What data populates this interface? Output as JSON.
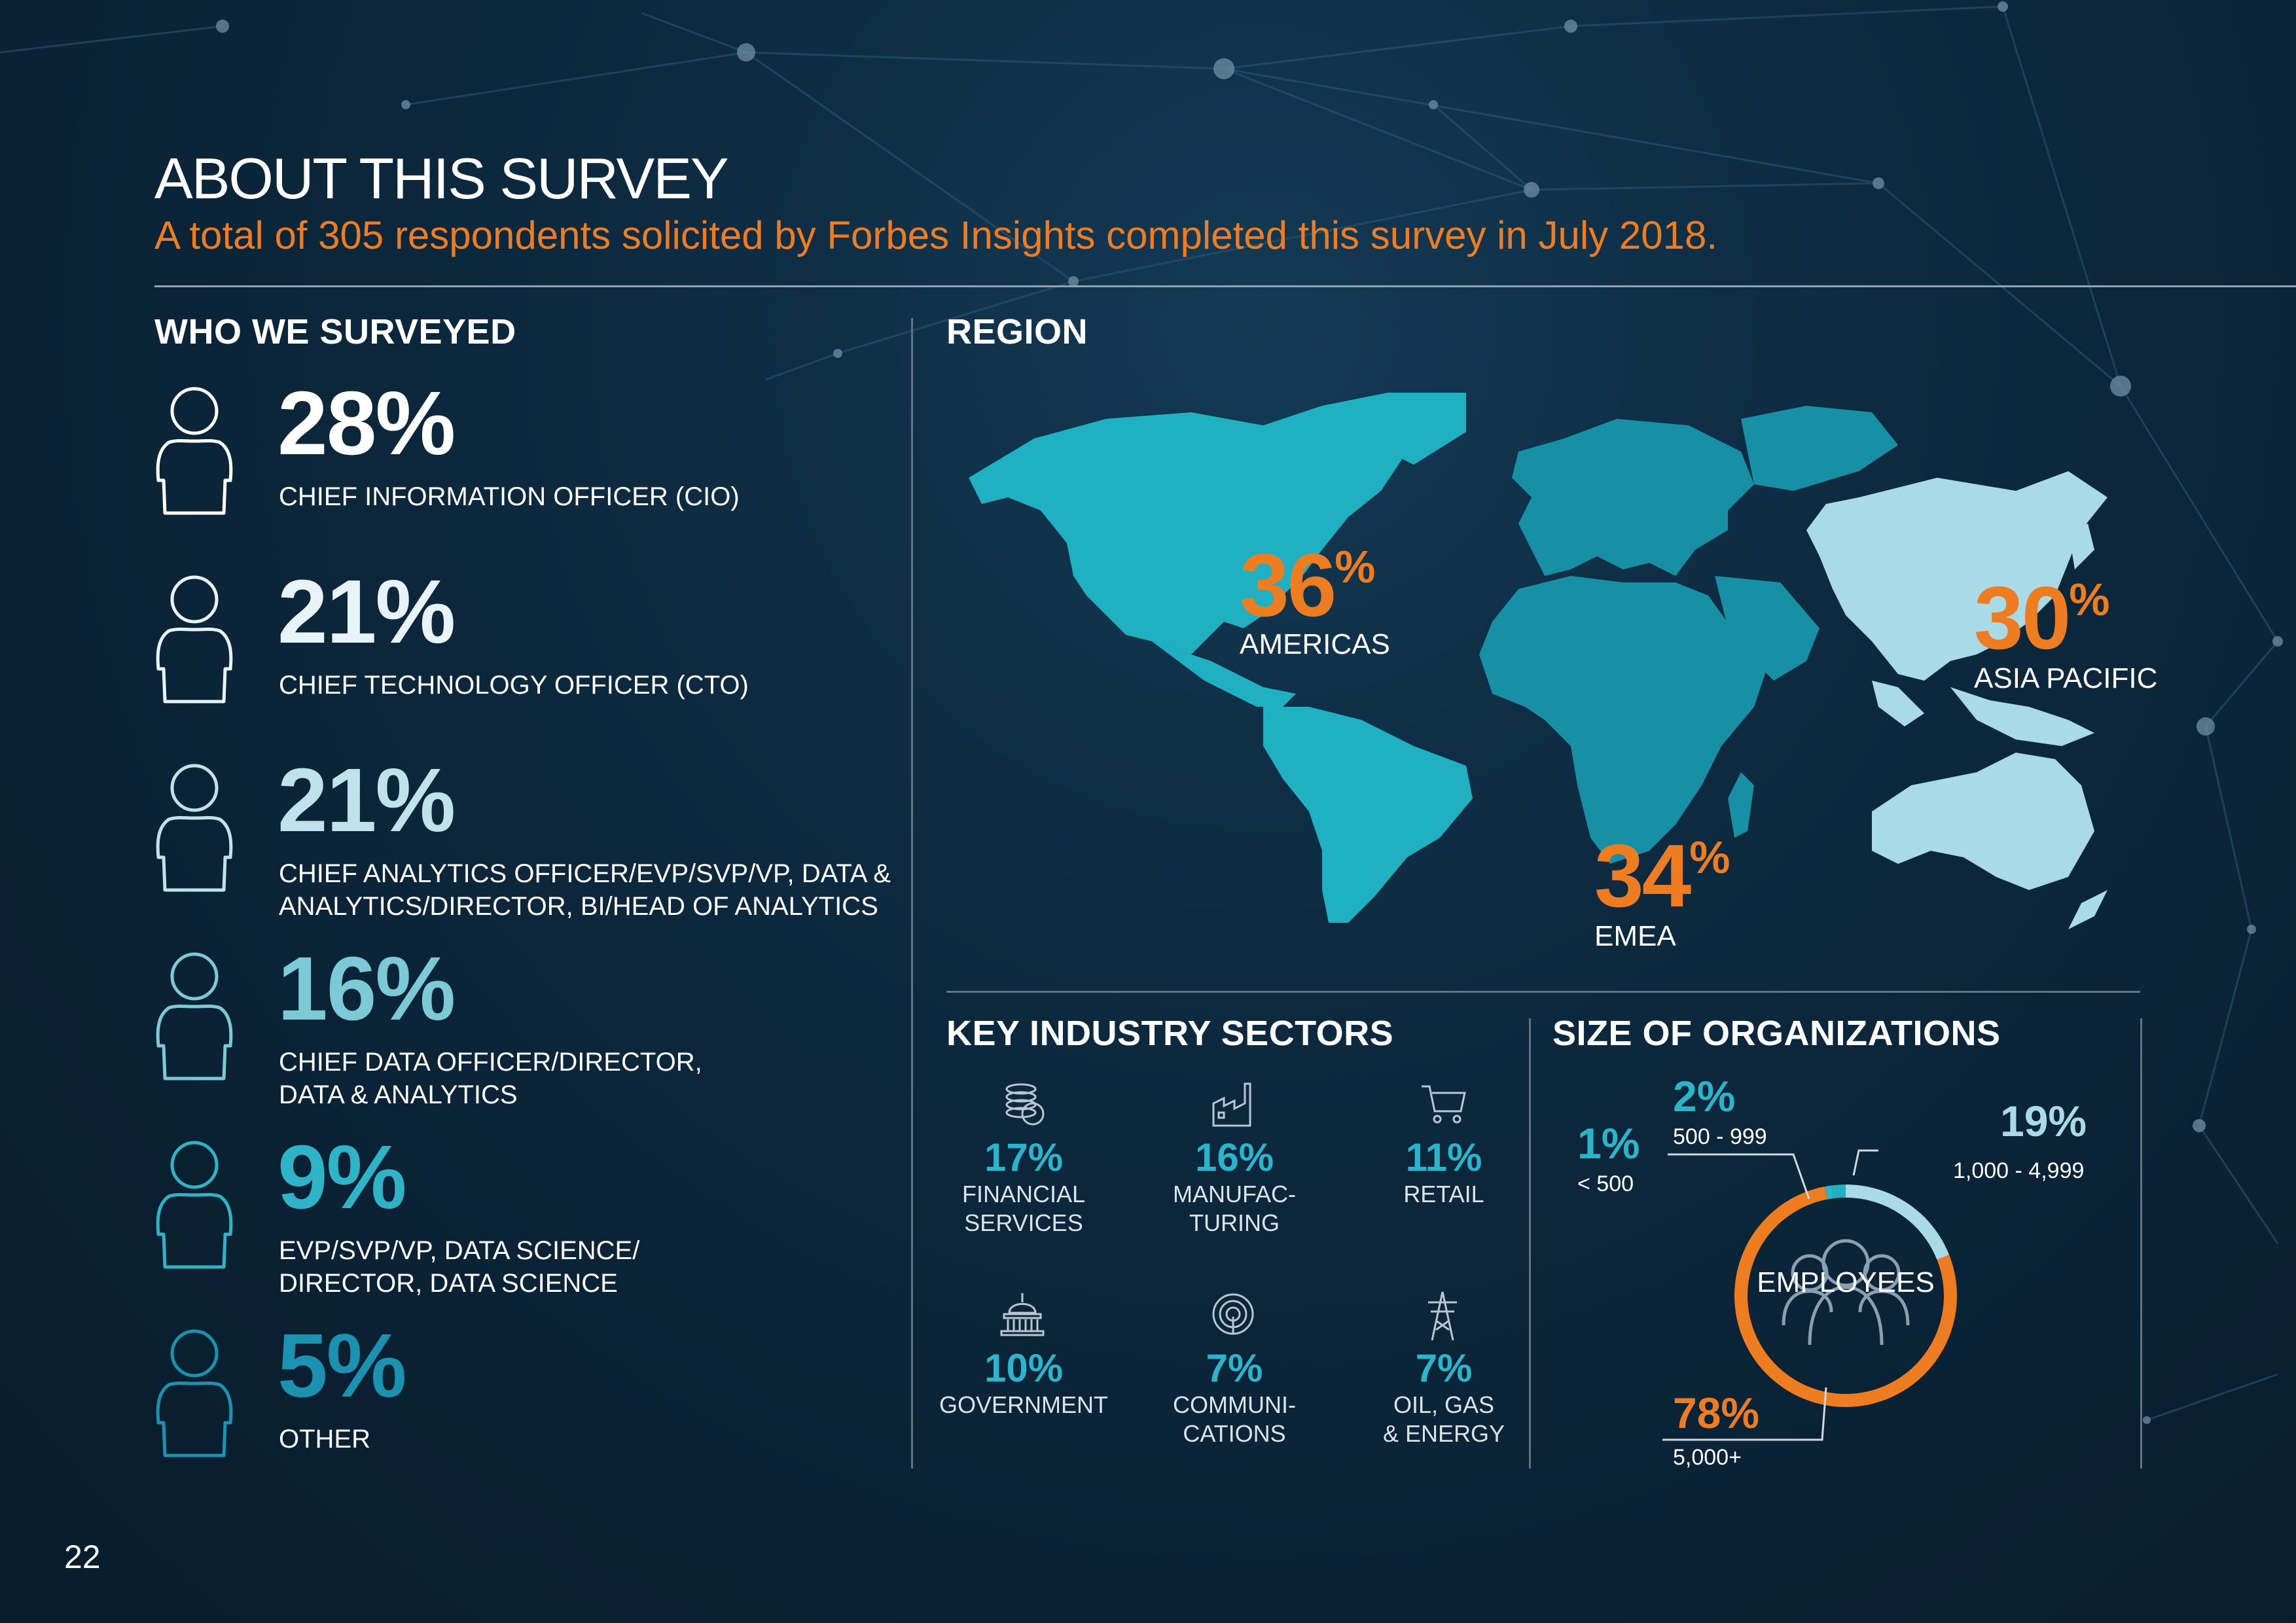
{
  "page": {
    "title": "ABOUT THIS SURVEY",
    "subtitle": "A total of 305 respondents solicited by Forbes Insights completed this survey in July 2018.",
    "page_number": "22"
  },
  "colors": {
    "background": "#0b2436",
    "accent_orange": "#ee7d22",
    "teal": "#2bb5cc",
    "americas": "#1fb0c2",
    "emea": "#1790a6",
    "asia_pacific": "#a9dbe6"
  },
  "who_we_surveyed": {
    "heading": "WHO WE SURVEYED",
    "icon": "person-outline-icon",
    "roles": [
      {
        "pct": "28%",
        "lines": [
          "CHIEF INFORMATION OFFICER (CIO)"
        ],
        "color": "#ffffff"
      },
      {
        "pct": "21%",
        "lines": [
          "CHIEF TECHNOLOGY OFFICER (CTO)"
        ],
        "color": "#e8f3f7"
      },
      {
        "pct": "21%",
        "lines": [
          "CHIEF ANALYTICS OFFICER/EVP/SVP/VP, DATA &",
          "ANALYTICS/DIRECTOR, BI/HEAD OF ANALYTICS"
        ],
        "color": "#bfe3ea"
      },
      {
        "pct": "16%",
        "lines": [
          "CHIEF DATA OFFICER/DIRECTOR,",
          "DATA & ANALYTICS"
        ],
        "color": "#7ccad8"
      },
      {
        "pct": "9%",
        "lines": [
          "EVP/SVP/VP, DATA SCIENCE/",
          "DIRECTOR, DATA SCIENCE"
        ],
        "color": "#2fb3c6"
      },
      {
        "pct": "5%",
        "lines": [
          "OTHER"
        ],
        "color": "#1b93b0"
      }
    ]
  },
  "region": {
    "heading": "REGION",
    "americas": {
      "pct": "36",
      "sign": "%",
      "label": "AMERICAS",
      "value": 36
    },
    "emea": {
      "pct": "34",
      "sign": "%",
      "label": "EMEA",
      "value": 34
    },
    "asia_pacific": {
      "pct": "30",
      "sign": "%",
      "label": "ASIA PACIFIC",
      "value": 30
    }
  },
  "industry": {
    "heading": "KEY INDUSTRY SECTORS",
    "items": [
      {
        "pct": "17%",
        "lines": [
          "FINANCIAL",
          "SERVICES"
        ],
        "icon": "coins-icon"
      },
      {
        "pct": "16%",
        "lines": [
          "MANUFAC-",
          "TURING"
        ],
        "icon": "factory-icon"
      },
      {
        "pct": "11%",
        "lines": [
          "RETAIL"
        ],
        "icon": "shopping-cart-icon"
      },
      {
        "pct": "10%",
        "lines": [
          "GOVERNMENT"
        ],
        "icon": "capitol-building-icon"
      },
      {
        "pct": "7%",
        "lines": [
          "COMMUNI-",
          "CATIONS"
        ],
        "icon": "broadcast-icon"
      },
      {
        "pct": "7%",
        "lines": [
          "OIL, GAS",
          "& ENERGY"
        ],
        "icon": "power-pylon-icon"
      }
    ]
  },
  "size": {
    "heading": "SIZE OF ORGANIZATIONS",
    "center_label": "EMPLOYEES",
    "center_icon": "people-group-icon",
    "segments": [
      {
        "pct": "1%",
        "label": "< 500",
        "value": 1,
        "color": "#2bb5cc"
      },
      {
        "pct": "2%",
        "label": "500 - 999",
        "value": 2,
        "color": "#1fb0c2"
      },
      {
        "pct": "19%",
        "label": "1,000 - 4,999",
        "value": 19,
        "color": "#a9dbe6"
      },
      {
        "pct": "78%",
        "label": "5,000+",
        "value": 78,
        "color": "#ee7d22"
      }
    ]
  }
}
